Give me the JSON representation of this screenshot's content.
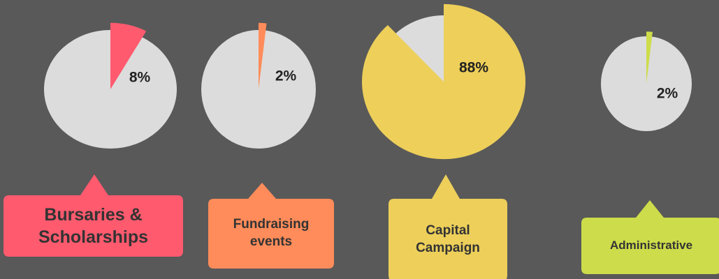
{
  "chart_data": [
    {
      "type": "pie",
      "categories": [
        "Bursaries & Scholarships"
      ],
      "values": [
        8
      ],
      "value_labels": [
        "8%"
      ],
      "color": "#ff5a6e"
    },
    {
      "type": "pie",
      "categories": [
        "Fundraising events"
      ],
      "values": [
        2
      ],
      "value_labels": [
        "2%"
      ],
      "color": "#ff8c5a"
    },
    {
      "type": "pie",
      "categories": [
        "Capital Campaign"
      ],
      "values": [
        88
      ],
      "value_labels": [
        "88%"
      ],
      "color": "#edcf5a"
    },
    {
      "type": "pie",
      "categories": [
        "Administrative"
      ],
      "values": [
        2
      ],
      "value_labels": [
        "2%"
      ],
      "color": "#cddc4a"
    }
  ]
}
